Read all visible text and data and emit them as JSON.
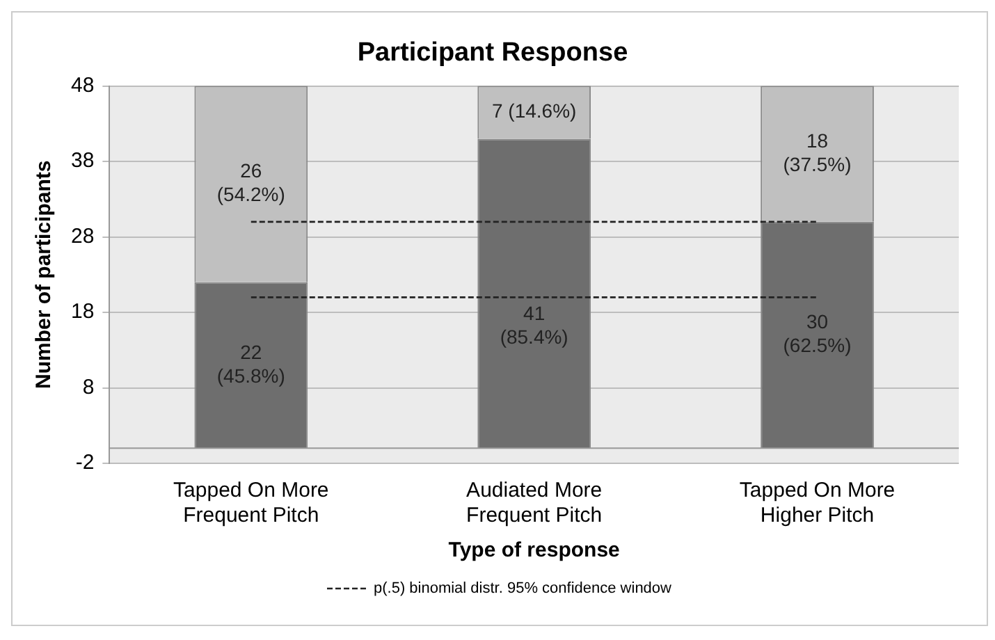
{
  "chart_data": {
    "type": "bar",
    "title": "Participant Response",
    "xlabel": "Type of response",
    "ylabel": "Number of participants",
    "categories": [
      "Tapped On More\nFrequent Pitch",
      "Audiated More\nFrequent Pitch",
      "Tapped On More\nHigher Pitch"
    ],
    "stacked": true,
    "series": [
      {
        "color": "#6e6e6e",
        "values": [
          22,
          41,
          30
        ],
        "value_labels": [
          "22\n(45.8%)",
          "41\n(85.4%)",
          "30\n(62.5%)"
        ]
      },
      {
        "color": "#c0c0c0",
        "values": [
          26,
          7,
          18
        ],
        "value_labels": [
          "26\n(54.2%)",
          "7 (14.6%)",
          "18\n(37.5%)"
        ]
      }
    ],
    "ylim": [
      -2,
      48
    ],
    "yticks": [
      -2,
      8,
      18,
      28,
      38,
      48
    ],
    "grid": "y",
    "ref_lines": [
      {
        "axis": "y",
        "value": 30,
        "label": "p(.5) binomial distr. 95% confidence window",
        "color": "#222222",
        "line_style": "dashed"
      },
      {
        "axis": "y",
        "value": 20,
        "color": "#222222",
        "line_style": "dashed"
      }
    ],
    "legend": "bottom"
  }
}
